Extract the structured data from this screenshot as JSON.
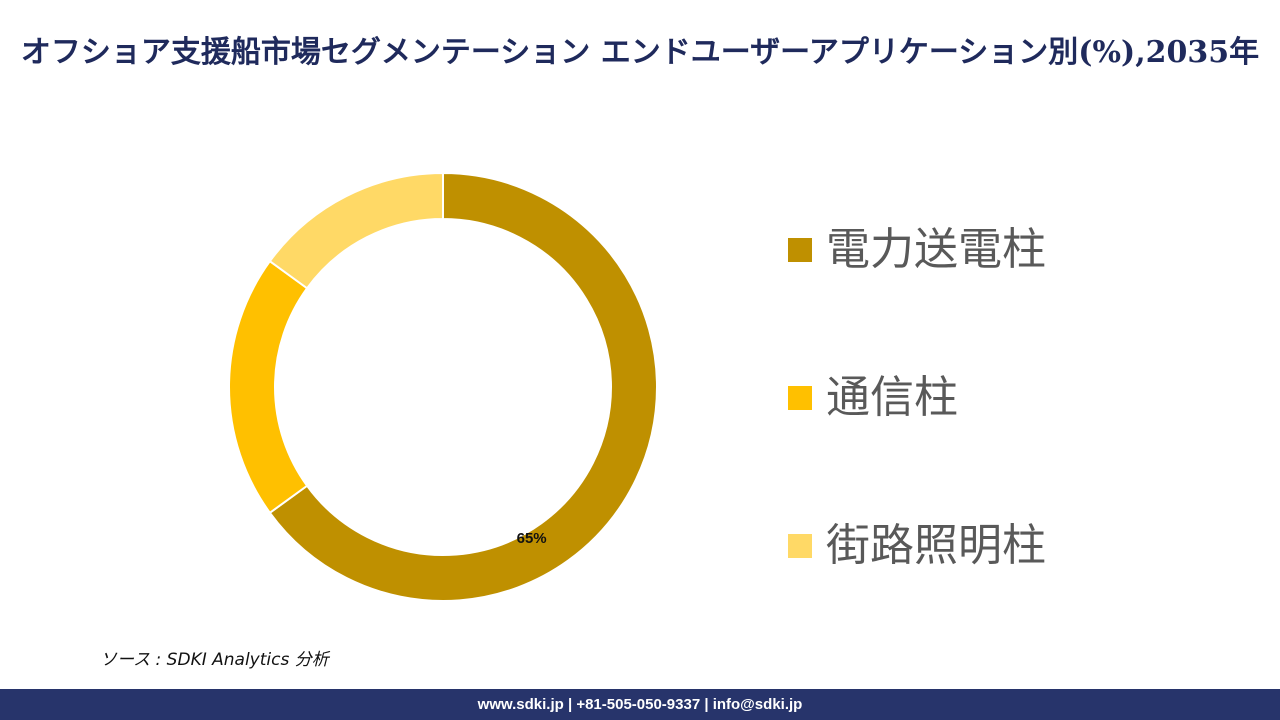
{
  "title": "オフショア支援船市場セグメンテーション エンドユーザーアプリケーション別(%),2035年",
  "chart_data": {
    "type": "pie",
    "title": "オフショア支援船市場セグメンテーション エンドユーザーアプリケーション別(%),2035年",
    "categories": [
      "電力送電柱",
      "通信柱",
      "街路照明柱"
    ],
    "values": [
      65,
      20,
      15
    ],
    "colors": [
      "#bf9000",
      "#ffc000",
      "#ffd966"
    ],
    "data_labels": [
      "65%",
      "",
      ""
    ],
    "donut": true,
    "legend_position": "right"
  },
  "source": "ソース : SDKI Analytics 分析",
  "footer": "www.sdki.jp | +81-505-050-9337 | info@sdki.jp"
}
